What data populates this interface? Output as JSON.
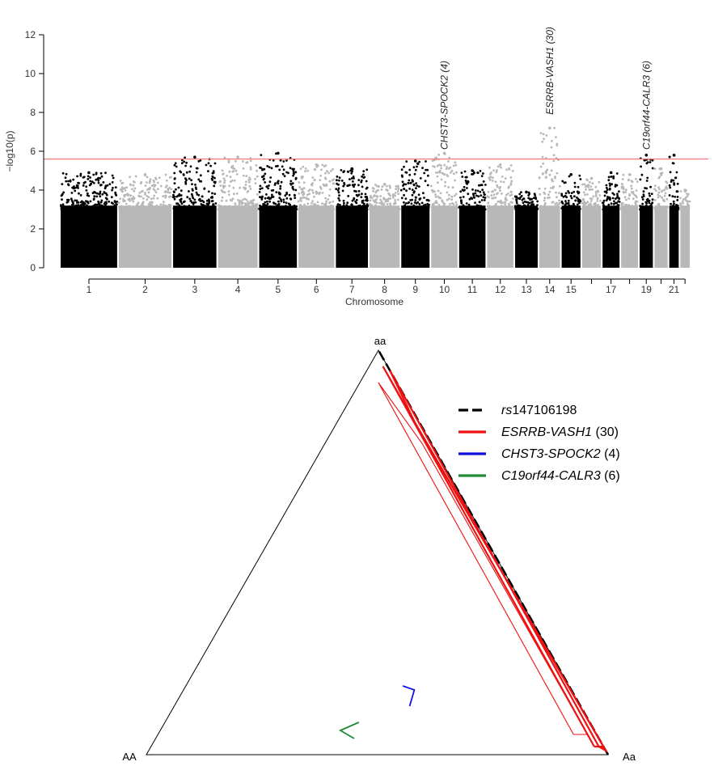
{
  "chart_data": [
    {
      "type": "scatter",
      "subtype": "manhattan",
      "xlabel": "Chromosome",
      "ylabel": "−log10(p)",
      "ylim": [
        0,
        12
      ],
      "yticks": [
        0,
        2,
        4,
        6,
        8,
        10,
        12
      ],
      "threshold": {
        "value": 5.6,
        "color": "#f08080"
      },
      "colors": {
        "odd": "#000000",
        "even": "#b8b8b8"
      },
      "chromosomes": [
        {
          "chr": 1,
          "label": "1",
          "peak": 4.9
        },
        {
          "chr": 2,
          "label": "2",
          "peak": 4.8
        },
        {
          "chr": 3,
          "label": "3",
          "peak": 5.7
        },
        {
          "chr": 4,
          "label": "4",
          "peak": 5.7
        },
        {
          "chr": 5,
          "label": "5",
          "peak": 5.9
        },
        {
          "chr": 6,
          "label": "6",
          "peak": 5.3
        },
        {
          "chr": 7,
          "label": "7",
          "peak": 5.1
        },
        {
          "chr": 8,
          "label": "8",
          "peak": 4.3
        },
        {
          "chr": 9,
          "label": "9",
          "peak": 5.5
        },
        {
          "chr": 10,
          "label": "10",
          "peak": 5.9
        },
        {
          "chr": 11,
          "label": "11",
          "peak": 5.0
        },
        {
          "chr": 12,
          "label": "12",
          "peak": 5.3
        },
        {
          "chr": 13,
          "label": "13",
          "peak": 3.9
        },
        {
          "chr": 14,
          "label": "14",
          "peak": 7.2
        },
        {
          "chr": 15,
          "label": "15",
          "peak": 4.8
        },
        {
          "chr": 16,
          "label": "",
          "peak": 4.6
        },
        {
          "chr": 17,
          "label": "17",
          "peak": 4.9
        },
        {
          "chr": 18,
          "label": "",
          "peak": 4.8
        },
        {
          "chr": 19,
          "label": "19",
          "peak": 5.8
        },
        {
          "chr": 20,
          "label": "",
          "peak": 5.1
        },
        {
          "chr": 21,
          "label": "21",
          "peak": 5.8
        },
        {
          "chr": 22,
          "label": "",
          "peak": 4.0
        }
      ],
      "annotations": [
        {
          "text": "CHST3-SPOCK2 (4)",
          "chr": 10,
          "y": 6.0
        },
        {
          "text": "ESRRB-VASH1 (30)",
          "chr": 14,
          "y": 7.8
        },
        {
          "text": "C19orf44-CALR3 (6)",
          "chr": 19,
          "y": 6.0
        }
      ]
    },
    {
      "type": "ternary",
      "vertices": {
        "left": "AA",
        "right": "Aa",
        "top": "aa"
      },
      "legend": [
        {
          "label_italic": "rs",
          "label_rest": "147106198",
          "color": "#000000",
          "dashed": true
        },
        {
          "label_italic": "ESRRB-VASH1",
          "label_rest": " (30)",
          "color": "#ee1111",
          "dashed": false
        },
        {
          "label_italic": "CHST3-SPOCK2",
          "label_rest": " (4)",
          "color": "#1111dd",
          "dashed": false
        },
        {
          "label_italic": "C19orf44-CALR3",
          "label_rest": " (6)",
          "color": "#228833",
          "dashed": false
        }
      ],
      "legend_position": "top-right",
      "series": [
        {
          "name": "rs147106198",
          "color": "#000000",
          "dashed": true,
          "points": [
            [
              0,
              1,
              0
            ],
            [
              0,
              0,
              1
            ]
          ]
        },
        {
          "name": "ESRRB-VASH1 (30)",
          "color": "#ee1111",
          "dashed": false,
          "loops": [
            [
              [
                0.05,
                0.9,
                0.05
              ],
              [
                0.02,
                0.93,
                0.05
              ],
              [
                0.02,
                0.21,
                0.77
              ],
              [
                0.04,
                0.04,
                0.92
              ],
              [
                0.05,
                0.9,
                0.05
              ]
            ],
            [
              [
                0.02,
                0.96,
                0.02
              ],
              [
                0.0,
                0.98,
                0.02
              ],
              [
                0.01,
                0.16,
                0.83
              ],
              [
                0.01,
                0.03,
                0.96
              ],
              [
                0.02,
                0.96,
                0.02
              ]
            ],
            [
              [
                0.01,
                0.97,
                0.02
              ],
              [
                0.0,
                0.99,
                0.01
              ],
              [
                0.01,
                0.17,
                0.82
              ],
              [
                0.0,
                0.05,
                0.95
              ],
              [
                0.01,
                0.97,
                0.02
              ]
            ]
          ]
        },
        {
          "name": "CHST3-SPOCK2 (4)",
          "color": "#1111dd",
          "dashed": false,
          "points": [
            [
              0.36,
              0.47,
              0.17
            ],
            [
              0.34,
              0.5,
              0.16
            ],
            [
              0.37,
              0.51,
              0.12
            ]
          ]
        },
        {
          "name": "C19orf44-CALR3 (6)",
          "color": "#228833",
          "dashed": false,
          "points": [
            [
              0.5,
              0.42,
              0.08
            ],
            [
              0.55,
              0.39,
              0.06
            ],
            [
              0.53,
              0.43,
              0.04
            ]
          ]
        }
      ]
    }
  ]
}
